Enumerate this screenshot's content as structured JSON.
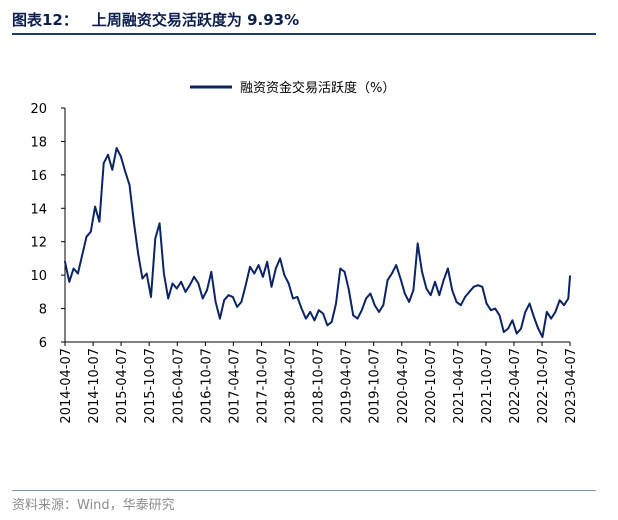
{
  "figure": {
    "label": "图表12：",
    "title": "上周融资交易活跃度为 9.93%",
    "source": "资料来源：Wind，华泰研究"
  },
  "colors": {
    "line": "#0b2466",
    "accent": "#1e3a78"
  },
  "chart_data": {
    "type": "line",
    "title": "",
    "xlabel": "",
    "ylabel": "",
    "ylim": [
      6,
      20
    ],
    "yticks": [
      6,
      8,
      10,
      12,
      14,
      16,
      18,
      20
    ],
    "xlim": [
      "2014-04-07",
      "2023-04-07"
    ],
    "xticks": [
      "2014-04-07",
      "2014-10-07",
      "2015-04-07",
      "2015-10-07",
      "2016-04-07",
      "2016-10-07",
      "2017-04-07",
      "2017-10-07",
      "2018-04-07",
      "2018-10-07",
      "2019-04-07",
      "2019-10-07",
      "2020-04-07",
      "2020-10-07",
      "2021-04-07",
      "2021-10-07",
      "2022-04-07",
      "2022-10-07",
      "2023-04-07"
    ],
    "grid": false,
    "legend_position": "top-center",
    "series": [
      {
        "name": "融资资金交易活跃度（%）",
        "points": [
          [
            "2014-04-07",
            10.8
          ],
          [
            "2014-05-05",
            9.6
          ],
          [
            "2014-06-02",
            10.4
          ],
          [
            "2014-06-30",
            10.1
          ],
          [
            "2014-07-28",
            11.2
          ],
          [
            "2014-08-25",
            12.3
          ],
          [
            "2014-09-22",
            12.6
          ],
          [
            "2014-10-20",
            14.1
          ],
          [
            "2014-11-17",
            13.2
          ],
          [
            "2014-12-15",
            16.7
          ],
          [
            "2015-01-12",
            17.2
          ],
          [
            "2015-02-09",
            16.3
          ],
          [
            "2015-03-09",
            17.6
          ],
          [
            "2015-04-06",
            17.1
          ],
          [
            "2015-05-04",
            16.2
          ],
          [
            "2015-06-01",
            15.4
          ],
          [
            "2015-06-29",
            13.2
          ],
          [
            "2015-07-27",
            11.3
          ],
          [
            "2015-08-24",
            9.8
          ],
          [
            "2015-09-21",
            10.1
          ],
          [
            "2015-10-19",
            8.7
          ],
          [
            "2015-11-16",
            12.2
          ],
          [
            "2015-12-14",
            13.1
          ],
          [
            "2016-01-11",
            10.1
          ],
          [
            "2016-02-08",
            8.6
          ],
          [
            "2016-03-07",
            9.5
          ],
          [
            "2016-04-04",
            9.2
          ],
          [
            "2016-05-02",
            9.6
          ],
          [
            "2016-05-30",
            9.0
          ],
          [
            "2016-06-27",
            9.4
          ],
          [
            "2016-07-25",
            9.9
          ],
          [
            "2016-08-22",
            9.5
          ],
          [
            "2016-09-19",
            8.6
          ],
          [
            "2016-10-17",
            9.1
          ],
          [
            "2016-11-14",
            10.2
          ],
          [
            "2016-12-12",
            8.4
          ],
          [
            "2017-01-09",
            7.4
          ],
          [
            "2017-02-06",
            8.5
          ],
          [
            "2017-03-06",
            8.8
          ],
          [
            "2017-04-03",
            8.7
          ],
          [
            "2017-05-01",
            8.1
          ],
          [
            "2017-05-29",
            8.4
          ],
          [
            "2017-06-26",
            9.4
          ],
          [
            "2017-07-24",
            10.5
          ],
          [
            "2017-08-21",
            10.1
          ],
          [
            "2017-09-18",
            10.6
          ],
          [
            "2017-10-16",
            9.9
          ],
          [
            "2017-11-13",
            10.8
          ],
          [
            "2017-12-11",
            9.3
          ],
          [
            "2018-01-08",
            10.4
          ],
          [
            "2018-02-05",
            11.0
          ],
          [
            "2018-03-05",
            10.0
          ],
          [
            "2018-04-02",
            9.5
          ],
          [
            "2018-04-30",
            8.6
          ],
          [
            "2018-05-28",
            8.7
          ],
          [
            "2018-06-25",
            8.0
          ],
          [
            "2018-07-23",
            7.4
          ],
          [
            "2018-08-20",
            7.8
          ],
          [
            "2018-09-17",
            7.3
          ],
          [
            "2018-10-15",
            7.9
          ],
          [
            "2018-11-12",
            7.7
          ],
          [
            "2018-12-10",
            7.0
          ],
          [
            "2019-01-07",
            7.2
          ],
          [
            "2019-02-04",
            8.3
          ],
          [
            "2019-03-04",
            10.4
          ],
          [
            "2019-04-01",
            10.2
          ],
          [
            "2019-04-29",
            9.1
          ],
          [
            "2019-05-27",
            7.6
          ],
          [
            "2019-06-24",
            7.4
          ],
          [
            "2019-07-22",
            7.9
          ],
          [
            "2019-08-19",
            8.6
          ],
          [
            "2019-09-16",
            8.9
          ],
          [
            "2019-10-14",
            8.2
          ],
          [
            "2019-11-11",
            7.8
          ],
          [
            "2019-12-09",
            8.2
          ],
          [
            "2020-01-06",
            9.7
          ],
          [
            "2020-02-03",
            10.1
          ],
          [
            "2020-03-02",
            10.6
          ],
          [
            "2020-03-30",
            9.8
          ],
          [
            "2020-04-27",
            8.9
          ],
          [
            "2020-05-25",
            8.4
          ],
          [
            "2020-06-22",
            9.1
          ],
          [
            "2020-07-20",
            11.9
          ],
          [
            "2020-08-17",
            10.2
          ],
          [
            "2020-09-14",
            9.2
          ],
          [
            "2020-10-12",
            8.8
          ],
          [
            "2020-11-09",
            9.6
          ],
          [
            "2020-12-07",
            8.8
          ],
          [
            "2021-01-04",
            9.7
          ],
          [
            "2021-02-01",
            10.4
          ],
          [
            "2021-03-01",
            9.1
          ],
          [
            "2021-03-29",
            8.4
          ],
          [
            "2021-04-26",
            8.2
          ],
          [
            "2021-05-24",
            8.7
          ],
          [
            "2021-06-21",
            9.0
          ],
          [
            "2021-07-19",
            9.3
          ],
          [
            "2021-08-16",
            9.4
          ],
          [
            "2021-09-13",
            9.3
          ],
          [
            "2021-10-11",
            8.3
          ],
          [
            "2021-11-08",
            7.9
          ],
          [
            "2021-12-06",
            8.0
          ],
          [
            "2022-01-03",
            7.6
          ],
          [
            "2022-01-31",
            6.6
          ],
          [
            "2022-02-28",
            6.8
          ],
          [
            "2022-03-28",
            7.3
          ],
          [
            "2022-04-25",
            6.5
          ],
          [
            "2022-05-23",
            6.8
          ],
          [
            "2022-06-20",
            7.8
          ],
          [
            "2022-07-18",
            8.3
          ],
          [
            "2022-08-15",
            7.5
          ],
          [
            "2022-09-12",
            6.8
          ],
          [
            "2022-10-10",
            6.3
          ],
          [
            "2022-11-07",
            7.8
          ],
          [
            "2022-12-05",
            7.4
          ],
          [
            "2023-01-02",
            7.8
          ],
          [
            "2023-01-30",
            8.5
          ],
          [
            "2023-02-27",
            8.2
          ],
          [
            "2023-03-27",
            8.6
          ],
          [
            "2023-04-07",
            9.93
          ]
        ]
      }
    ]
  }
}
